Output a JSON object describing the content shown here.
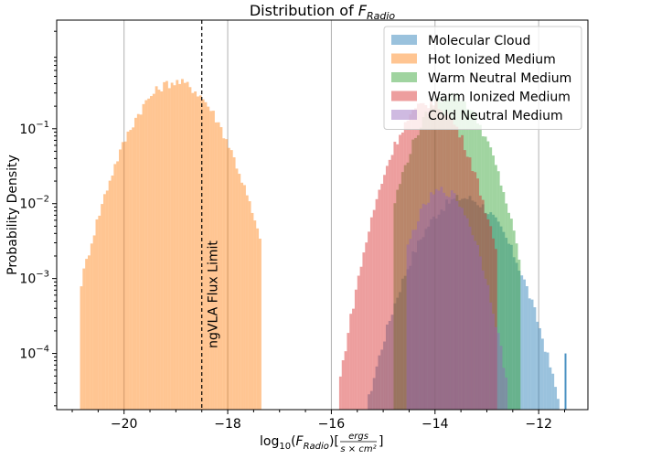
{
  "chart_data": {
    "type": "histogram",
    "title_prefix": "Distribution of ",
    "title_symbol": "F",
    "title_subscript": "Radio",
    "xlabel": "log10(F_Radio)[ergs / s×cm²]",
    "xlabel_parts": {
      "log": "log",
      "base": "10",
      "var": "F",
      "sub": "Radio",
      "num": "ergs",
      "den": "s × cm²"
    },
    "ylabel": "Probability Density",
    "xlim": [
      -21.3,
      -11.05
    ],
    "ylim_log10": [
      -4.75,
      0.45
    ],
    "yscale": "log",
    "x_ticks": [
      -20,
      -18,
      -16,
      -14,
      -12
    ],
    "x_tick_labels": [
      "−20",
      "−18",
      "−16",
      "−14",
      "−12"
    ],
    "y_ticks_log10": [
      -4,
      -3,
      -2,
      -1
    ],
    "y_tick_labels": [
      {
        "base": "10",
        "exp": "−4"
      },
      {
        "base": "10",
        "exp": "−3"
      },
      {
        "base": "10",
        "exp": "−2"
      },
      {
        "base": "10",
        "exp": "−1"
      }
    ],
    "grid": "x-major",
    "legend_position": "upper right",
    "vline": {
      "x": -18.5,
      "label": "ngVLA Flux Limit",
      "style": "dashed",
      "color": "#000000"
    },
    "series": [
      {
        "name": "Molecular Cloud",
        "color": "#1f77b4",
        "alpha": 0.45,
        "range": [
          -15.5,
          -11.5
        ],
        "mu": -13.45,
        "sigma": 0.52,
        "peak": 0.012,
        "extra": [
          [
            -11.5,
            0.0001
          ]
        ]
      },
      {
        "name": "Hot Ionized Medium",
        "color": "#ff7f0e",
        "alpha": 0.45,
        "range": [
          -20.85,
          -17.35
        ],
        "mu": -19.0,
        "sigma": 0.52,
        "peak": 0.42
      },
      {
        "name": "Warm Neutral Medium",
        "color": "#2ca02c",
        "alpha": 0.45,
        "range": [
          -14.8,
          -12.35
        ],
        "mu": -13.7,
        "sigma": 0.42,
        "peak": 0.28
      },
      {
        "name": "Warm Ionized Medium",
        "color": "#d62728",
        "alpha": 0.45,
        "range": [
          -15.85,
          -12.8
        ],
        "mu": -14.1,
        "sigma": 0.42,
        "peak": 0.22
      },
      {
        "name": "Cold Neutral Medium",
        "color": "#9467bd",
        "alpha": 0.45,
        "range": [
          -14.55,
          -12.6
        ],
        "mu": -13.85,
        "sigma": 0.36,
        "peak": 0.015
      }
    ]
  }
}
